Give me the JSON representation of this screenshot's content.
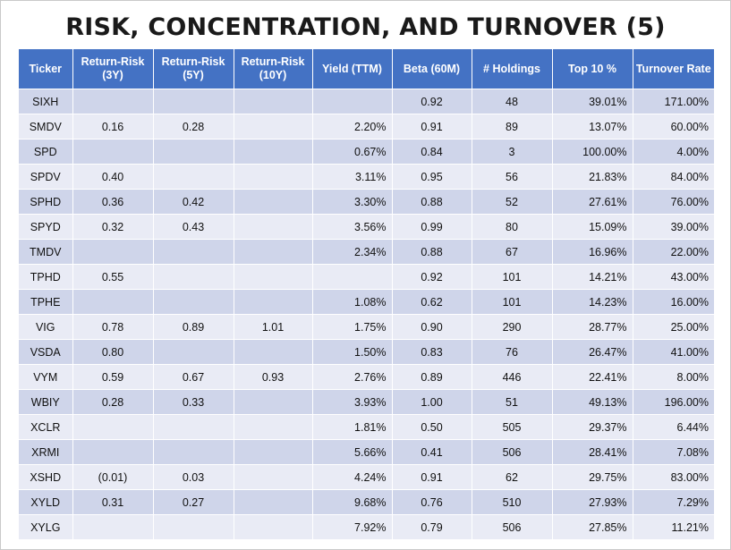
{
  "title": "RISK, CONCENTRATION, AND TURNOVER (5)",
  "colors": {
    "header_bg": "#4472c4",
    "row_odd": "#cfd5ea",
    "row_even": "#e9ebf5"
  },
  "headers": {
    "ticker": "Ticker",
    "rr3_line1": "Return-Risk",
    "rr3_line2": "(3Y)",
    "rr5_line1": "Return-Risk",
    "rr5_line2": "(5Y)",
    "rr10_line1": "Return-Risk",
    "rr10_line2": "(10Y)",
    "yield": "Yield (TTM)",
    "beta": "Beta (60M)",
    "holdings": "# Holdings",
    "top10": "Top 10 %",
    "turnover": "Turnover Rate"
  },
  "rows": [
    {
      "ticker": "SIXH",
      "rr3": "",
      "rr5": "",
      "rr10": "",
      "yield": "",
      "beta": "0.92",
      "holdings": "48",
      "top10": "39.01%",
      "turnover": "171.00%"
    },
    {
      "ticker": "SMDV",
      "rr3": "0.16",
      "rr5": "0.28",
      "rr10": "",
      "yield": "2.20%",
      "beta": "0.91",
      "holdings": "89",
      "top10": "13.07%",
      "turnover": "60.00%"
    },
    {
      "ticker": "SPD",
      "rr3": "",
      "rr5": "",
      "rr10": "",
      "yield": "0.67%",
      "beta": "0.84",
      "holdings": "3",
      "top10": "100.00%",
      "turnover": "4.00%"
    },
    {
      "ticker": "SPDV",
      "rr3": "0.40",
      "rr5": "",
      "rr10": "",
      "yield": "3.11%",
      "beta": "0.95",
      "holdings": "56",
      "top10": "21.83%",
      "turnover": "84.00%"
    },
    {
      "ticker": "SPHD",
      "rr3": "0.36",
      "rr5": "0.42",
      "rr10": "",
      "yield": "3.30%",
      "beta": "0.88",
      "holdings": "52",
      "top10": "27.61%",
      "turnover": "76.00%"
    },
    {
      "ticker": "SPYD",
      "rr3": "0.32",
      "rr5": "0.43",
      "rr10": "",
      "yield": "3.56%",
      "beta": "0.99",
      "holdings": "80",
      "top10": "15.09%",
      "turnover": "39.00%"
    },
    {
      "ticker": "TMDV",
      "rr3": "",
      "rr5": "",
      "rr10": "",
      "yield": "2.34%",
      "beta": "0.88",
      "holdings": "67",
      "top10": "16.96%",
      "turnover": "22.00%"
    },
    {
      "ticker": "TPHD",
      "rr3": "0.55",
      "rr5": "",
      "rr10": "",
      "yield": "",
      "beta": "0.92",
      "holdings": "101",
      "top10": "14.21%",
      "turnover": "43.00%"
    },
    {
      "ticker": "TPHE",
      "rr3": "",
      "rr5": "",
      "rr10": "",
      "yield": "1.08%",
      "beta": "0.62",
      "holdings": "101",
      "top10": "14.23%",
      "turnover": "16.00%"
    },
    {
      "ticker": "VIG",
      "rr3": "0.78",
      "rr5": "0.89",
      "rr10": "1.01",
      "yield": "1.75%",
      "beta": "0.90",
      "holdings": "290",
      "top10": "28.77%",
      "turnover": "25.00%"
    },
    {
      "ticker": "VSDA",
      "rr3": "0.80",
      "rr5": "",
      "rr10": "",
      "yield": "1.50%",
      "beta": "0.83",
      "holdings": "76",
      "top10": "26.47%",
      "turnover": "41.00%"
    },
    {
      "ticker": "VYM",
      "rr3": "0.59",
      "rr5": "0.67",
      "rr10": "0.93",
      "yield": "2.76%",
      "beta": "0.89",
      "holdings": "446",
      "top10": "22.41%",
      "turnover": "8.00%"
    },
    {
      "ticker": "WBIY",
      "rr3": "0.28",
      "rr5": "0.33",
      "rr10": "",
      "yield": "3.93%",
      "beta": "1.00",
      "holdings": "51",
      "top10": "49.13%",
      "turnover": "196.00%"
    },
    {
      "ticker": "XCLR",
      "rr3": "",
      "rr5": "",
      "rr10": "",
      "yield": "1.81%",
      "beta": "0.50",
      "holdings": "505",
      "top10": "29.37%",
      "turnover": "6.44%"
    },
    {
      "ticker": "XRMI",
      "rr3": "",
      "rr5": "",
      "rr10": "",
      "yield": "5.66%",
      "beta": "0.41",
      "holdings": "506",
      "top10": "28.41%",
      "turnover": "7.08%"
    },
    {
      "ticker": "XSHD",
      "rr3": "(0.01)",
      "rr5": "0.03",
      "rr10": "",
      "yield": "4.24%",
      "beta": "0.91",
      "holdings": "62",
      "top10": "29.75%",
      "turnover": "83.00%"
    },
    {
      "ticker": "XYLD",
      "rr3": "0.31",
      "rr5": "0.27",
      "rr10": "",
      "yield": "9.68%",
      "beta": "0.76",
      "holdings": "510",
      "top10": "27.93%",
      "turnover": "7.29%"
    },
    {
      "ticker": "XYLG",
      "rr3": "",
      "rr5": "",
      "rr10": "",
      "yield": "7.92%",
      "beta": "0.79",
      "holdings": "506",
      "top10": "27.85%",
      "turnover": "11.21%"
    }
  ]
}
